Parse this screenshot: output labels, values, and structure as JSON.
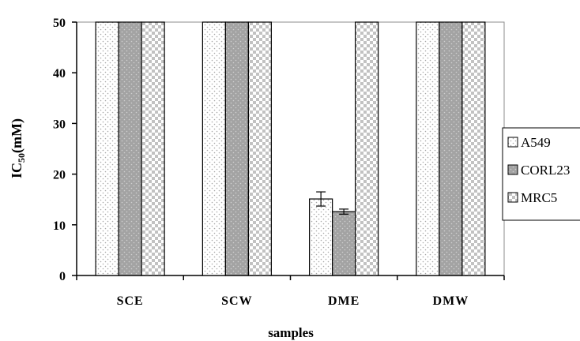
{
  "chart_data": {
    "type": "bar",
    "categories": [
      "SCE",
      "SCW",
      "DME",
      "DMW"
    ],
    "series": [
      {
        "name": "A549",
        "values": [
          50,
          50,
          15.1,
          50
        ],
        "errors": [
          null,
          null,
          1.4,
          null
        ],
        "pattern": "dots-light"
      },
      {
        "name": "CORL23",
        "values": [
          50,
          50,
          12.6,
          50
        ],
        "errors": [
          null,
          null,
          0.5,
          null
        ],
        "pattern": "gray-dots"
      },
      {
        "name": "MRC5",
        "values": [
          50,
          50,
          50,
          50
        ],
        "errors": [
          null,
          null,
          null,
          null
        ],
        "pattern": "checker"
      }
    ],
    "xlabel": "samples",
    "ylabel_main": "IC",
    "ylabel_sub": "50",
    "ylabel_rest": "(mM)",
    "ylim": [
      0,
      50
    ],
    "yticks": [
      0,
      10,
      20,
      30,
      40,
      50
    ],
    "legend_position": "right",
    "grid": false
  }
}
